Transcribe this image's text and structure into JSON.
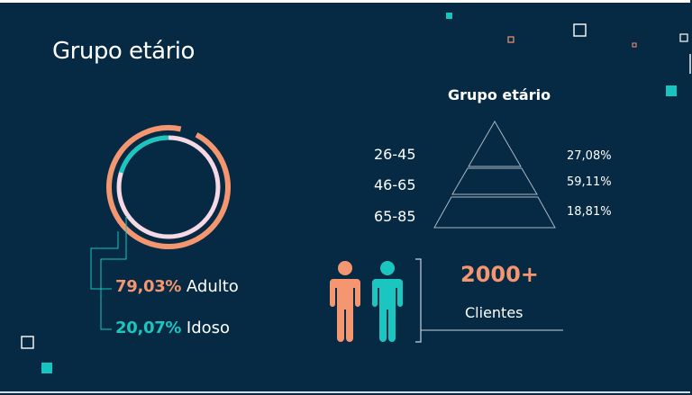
{
  "page": {
    "title": "Grupo etário"
  },
  "colors": {
    "background": "#062a44",
    "adult": "#f4966f",
    "elderly": "#1cc6c0",
    "ring_light": "#f7d9e6",
    "teal": "#17c5c0"
  },
  "chart_data": [
    {
      "type": "pie",
      "labels": [
        "Adulto",
        "Idoso"
      ],
      "values": [
        79.03,
        20.07
      ],
      "display": [
        "79,03%",
        "20,07%"
      ]
    },
    {
      "type": "bar",
      "title": "Grupo etário",
      "categories": [
        "26-45",
        "46-65",
        "65-85"
      ],
      "values": [
        27.08,
        59.11,
        18.81
      ],
      "display": [
        "27,08%",
        "59,11%",
        "18,81%"
      ]
    }
  ],
  "clients": {
    "count": "2000+",
    "label": "Clientes"
  }
}
